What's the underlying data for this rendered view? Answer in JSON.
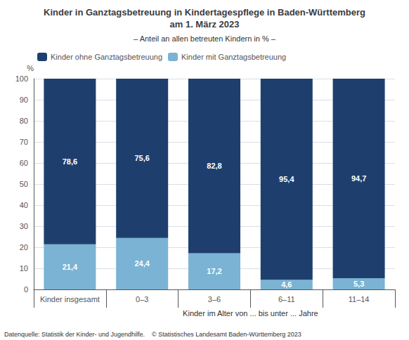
{
  "chart_data": {
    "type": "bar",
    "title": "Kinder in Ganztagsbetreuung in Kindertagespflege in Baden-Württemberg\nam 1. März 2023",
    "subtitle": "– Anteil an allen betreuten Kindern in % –",
    "ylabel": "%",
    "categories": [
      "Kinder insgesamt",
      "0–3",
      "3–6",
      "6–11",
      "11–14"
    ],
    "series": [
      {
        "name": "Kinder mit Ganztagsbetreuung",
        "color": "#7ab3d3",
        "values": [
          21.4,
          24.4,
          17.2,
          4.6,
          5.3
        ],
        "value_labels": [
          "21,4",
          "24,4",
          "17,2",
          "4,6",
          "5,3"
        ]
      },
      {
        "name": "Kinder ohne Ganztagsbetreuung",
        "color": "#1e3f6e",
        "values": [
          78.6,
          75.6,
          82.8,
          95.4,
          94.7
        ],
        "value_labels": [
          "78,6",
          "75,6",
          "82,8",
          "95,4",
          "94,7"
        ]
      }
    ],
    "stacked": true,
    "data_labels": true,
    "ylim": [
      0,
      100
    ],
    "yticks": [
      0,
      10,
      20,
      30,
      40,
      50,
      60,
      70,
      80,
      90,
      100
    ],
    "grid": true,
    "legend": "upper left",
    "annotations": [
      "Kinder im Alter von ... bis unter ... Jahre"
    ],
    "footnote": "Datenquelle: Statistik der Kinder- und Jugendhilfe.    © Statistisches Landesamt Baden-Württemberg 2023"
  }
}
